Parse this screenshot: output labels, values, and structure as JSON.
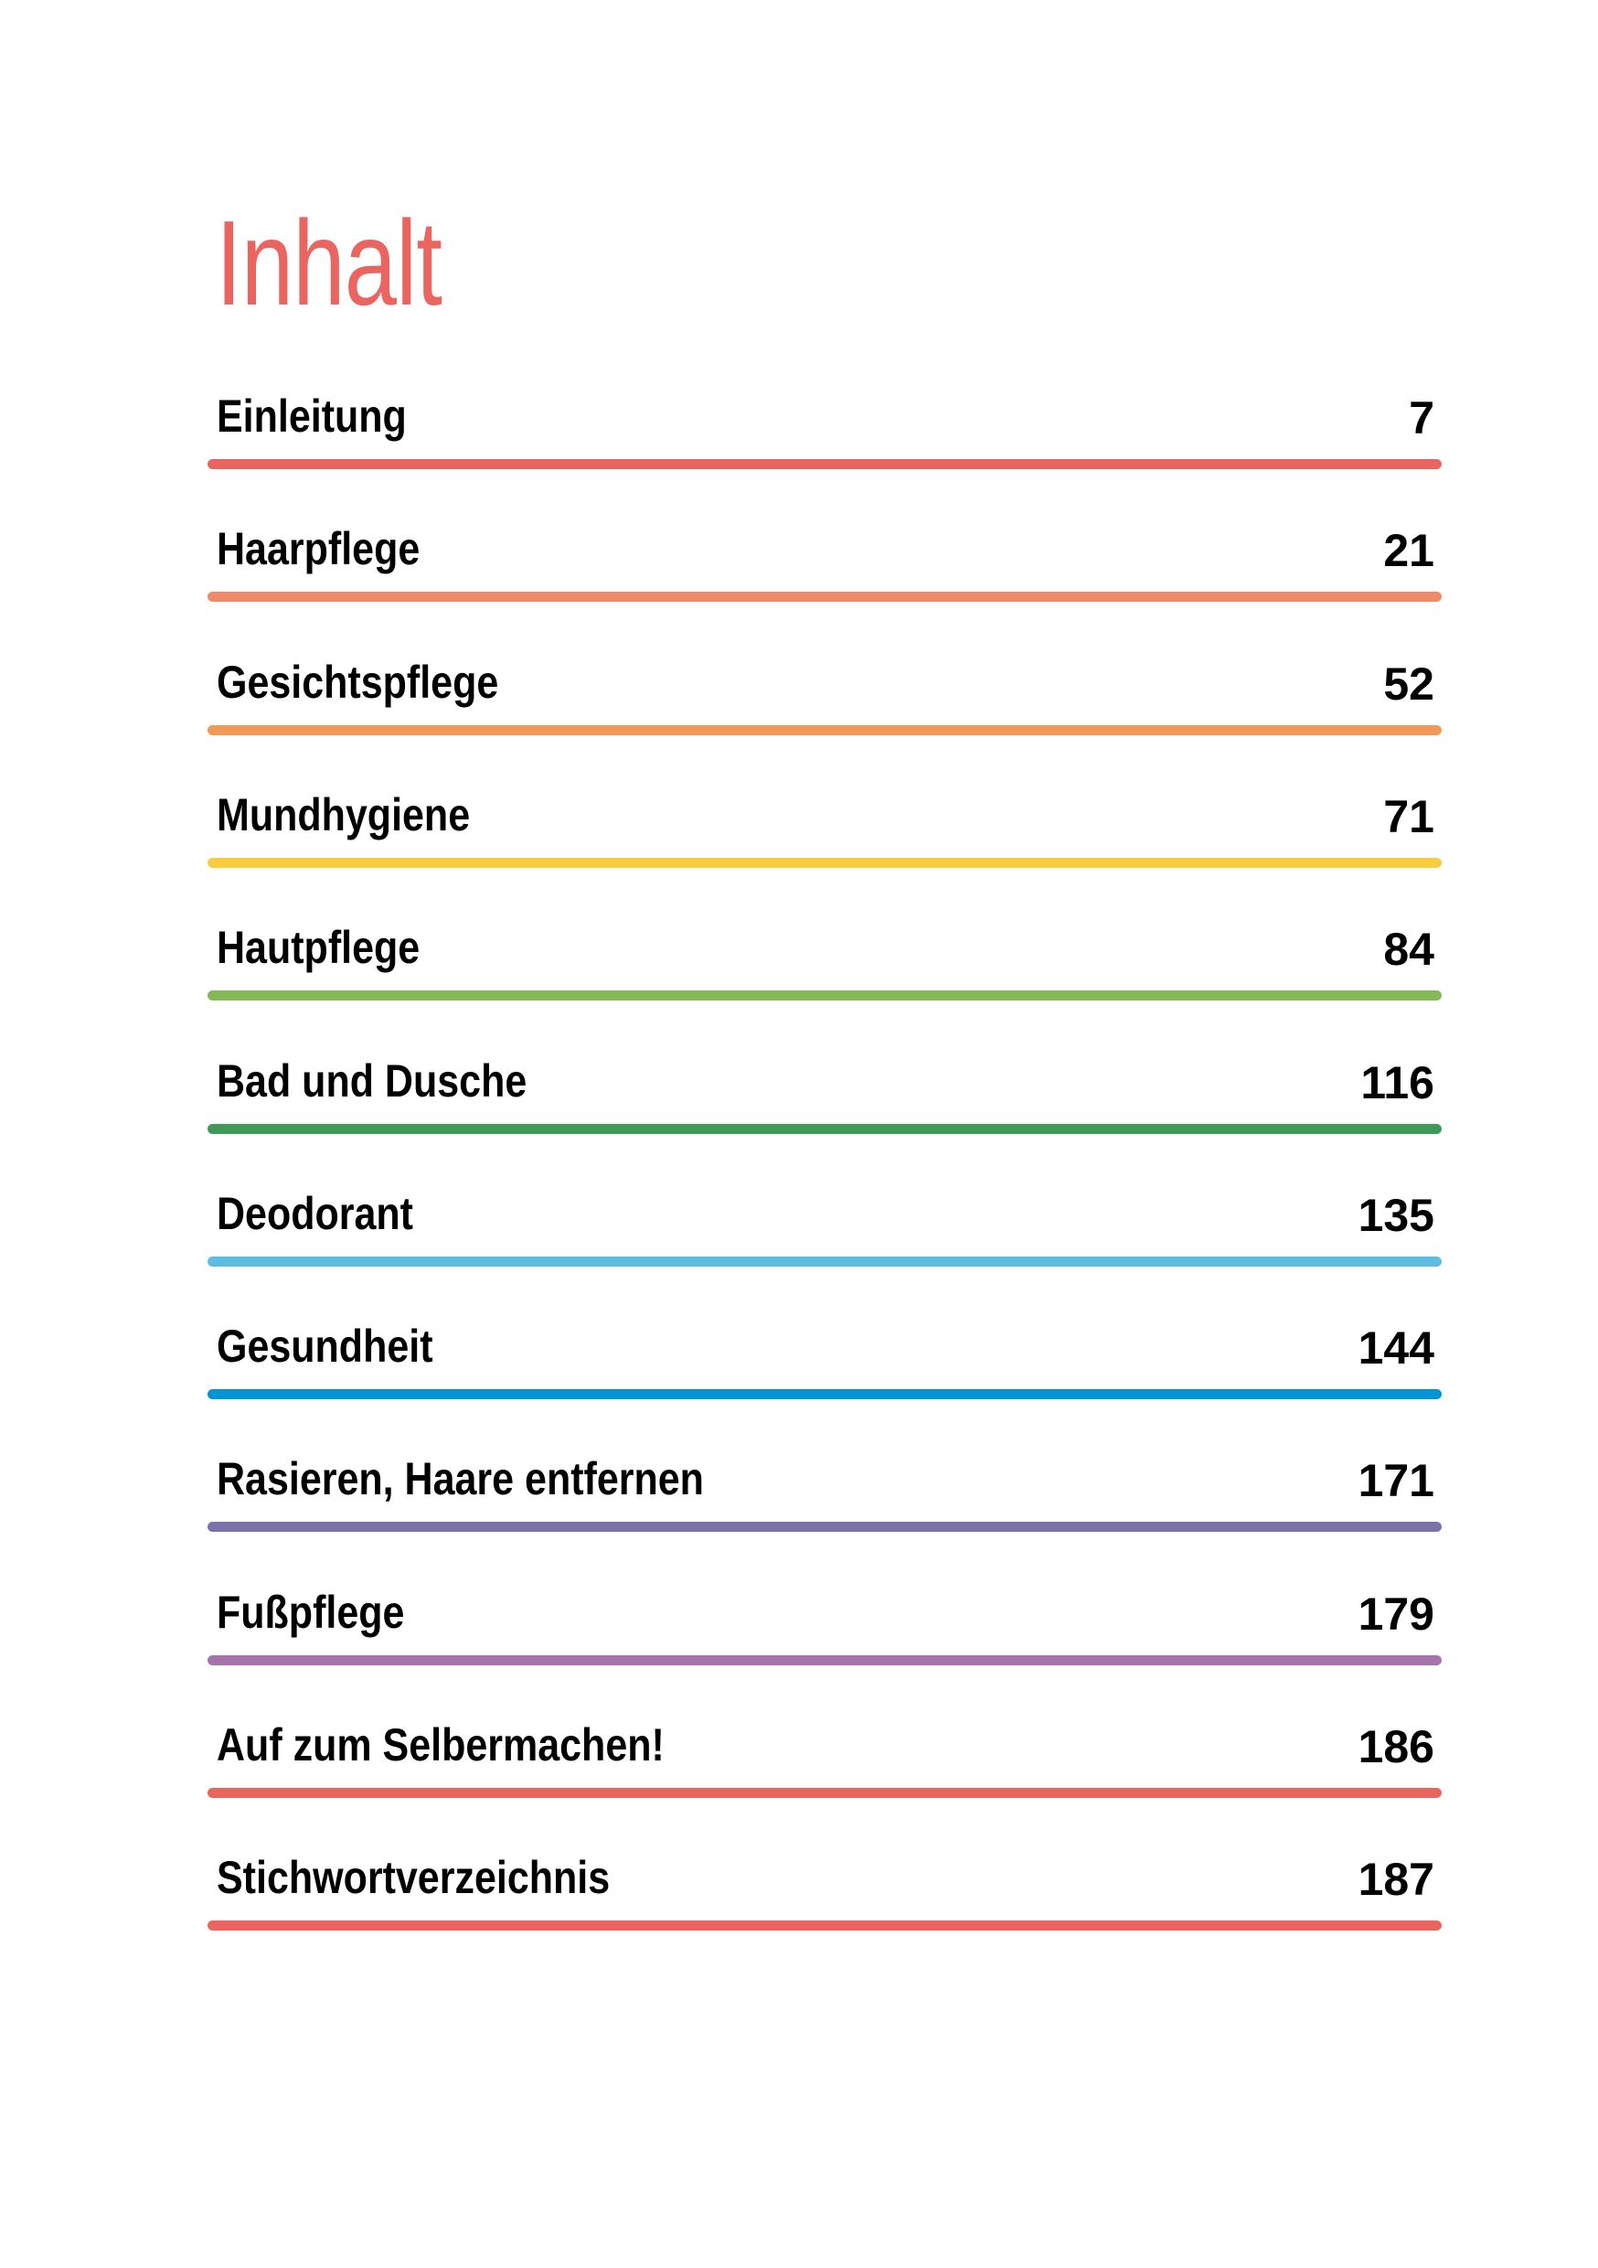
{
  "title": "Inhalt",
  "entries": [
    {
      "label": "Einleitung",
      "page": "7",
      "color": "#ea6560"
    },
    {
      "label": "Haarpflege",
      "page": "21",
      "color": "#ef8a6a"
    },
    {
      "label": "Gesichtspflege",
      "page": "52",
      "color": "#f09a55"
    },
    {
      "label": "Mundhygiene",
      "page": "71",
      "color": "#f9cc3c"
    },
    {
      "label": "Hautpflege",
      "page": "84",
      "color": "#85b857"
    },
    {
      "label": "Bad und Dusche",
      "page": "116",
      "color": "#3f9a59"
    },
    {
      "label": "Deodorant",
      "page": "135",
      "color": "#5bbde0"
    },
    {
      "label": "Gesundheit",
      "page": "144",
      "color": "#0095d4"
    },
    {
      "label": "Rasieren, Haare entfernen",
      "page": "171",
      "color": "#7b72ad"
    },
    {
      "label": "Fußpflege",
      "page": "179",
      "color": "#a674ab"
    },
    {
      "label": "Auf zum Selbermachen!",
      "page": "186",
      "color": "#ea6560"
    },
    {
      "label": "Stichwortverzeichnis",
      "page": "187",
      "color": "#ea6560"
    }
  ]
}
